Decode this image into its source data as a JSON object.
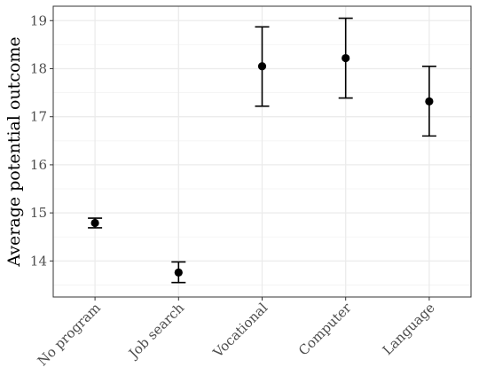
{
  "chart_data": {
    "type": "scatter",
    "subtype": "point-with-error-bars",
    "title": "",
    "xlabel": "",
    "ylabel": "Average potential outcome",
    "categories": [
      "No program",
      "Job search",
      "Vocational",
      "Computer",
      "Language"
    ],
    "values": [
      14.79,
      13.76,
      18.05,
      18.22,
      17.32
    ],
    "lower": [
      14.69,
      13.55,
      17.22,
      17.39,
      16.6
    ],
    "upper": [
      14.89,
      13.98,
      18.87,
      19.05,
      18.05
    ],
    "ylim": [
      13.25,
      19.3
    ],
    "yticks": [
      14,
      15,
      16,
      17,
      18,
      19
    ],
    "grid": true,
    "legend": "none",
    "colors": {
      "point": "#000000",
      "grid_major": "#ebebeb",
      "grid_minor": "#f3f3f3",
      "panel_border": "#333333",
      "tick_text": "#4d4d4d"
    }
  }
}
